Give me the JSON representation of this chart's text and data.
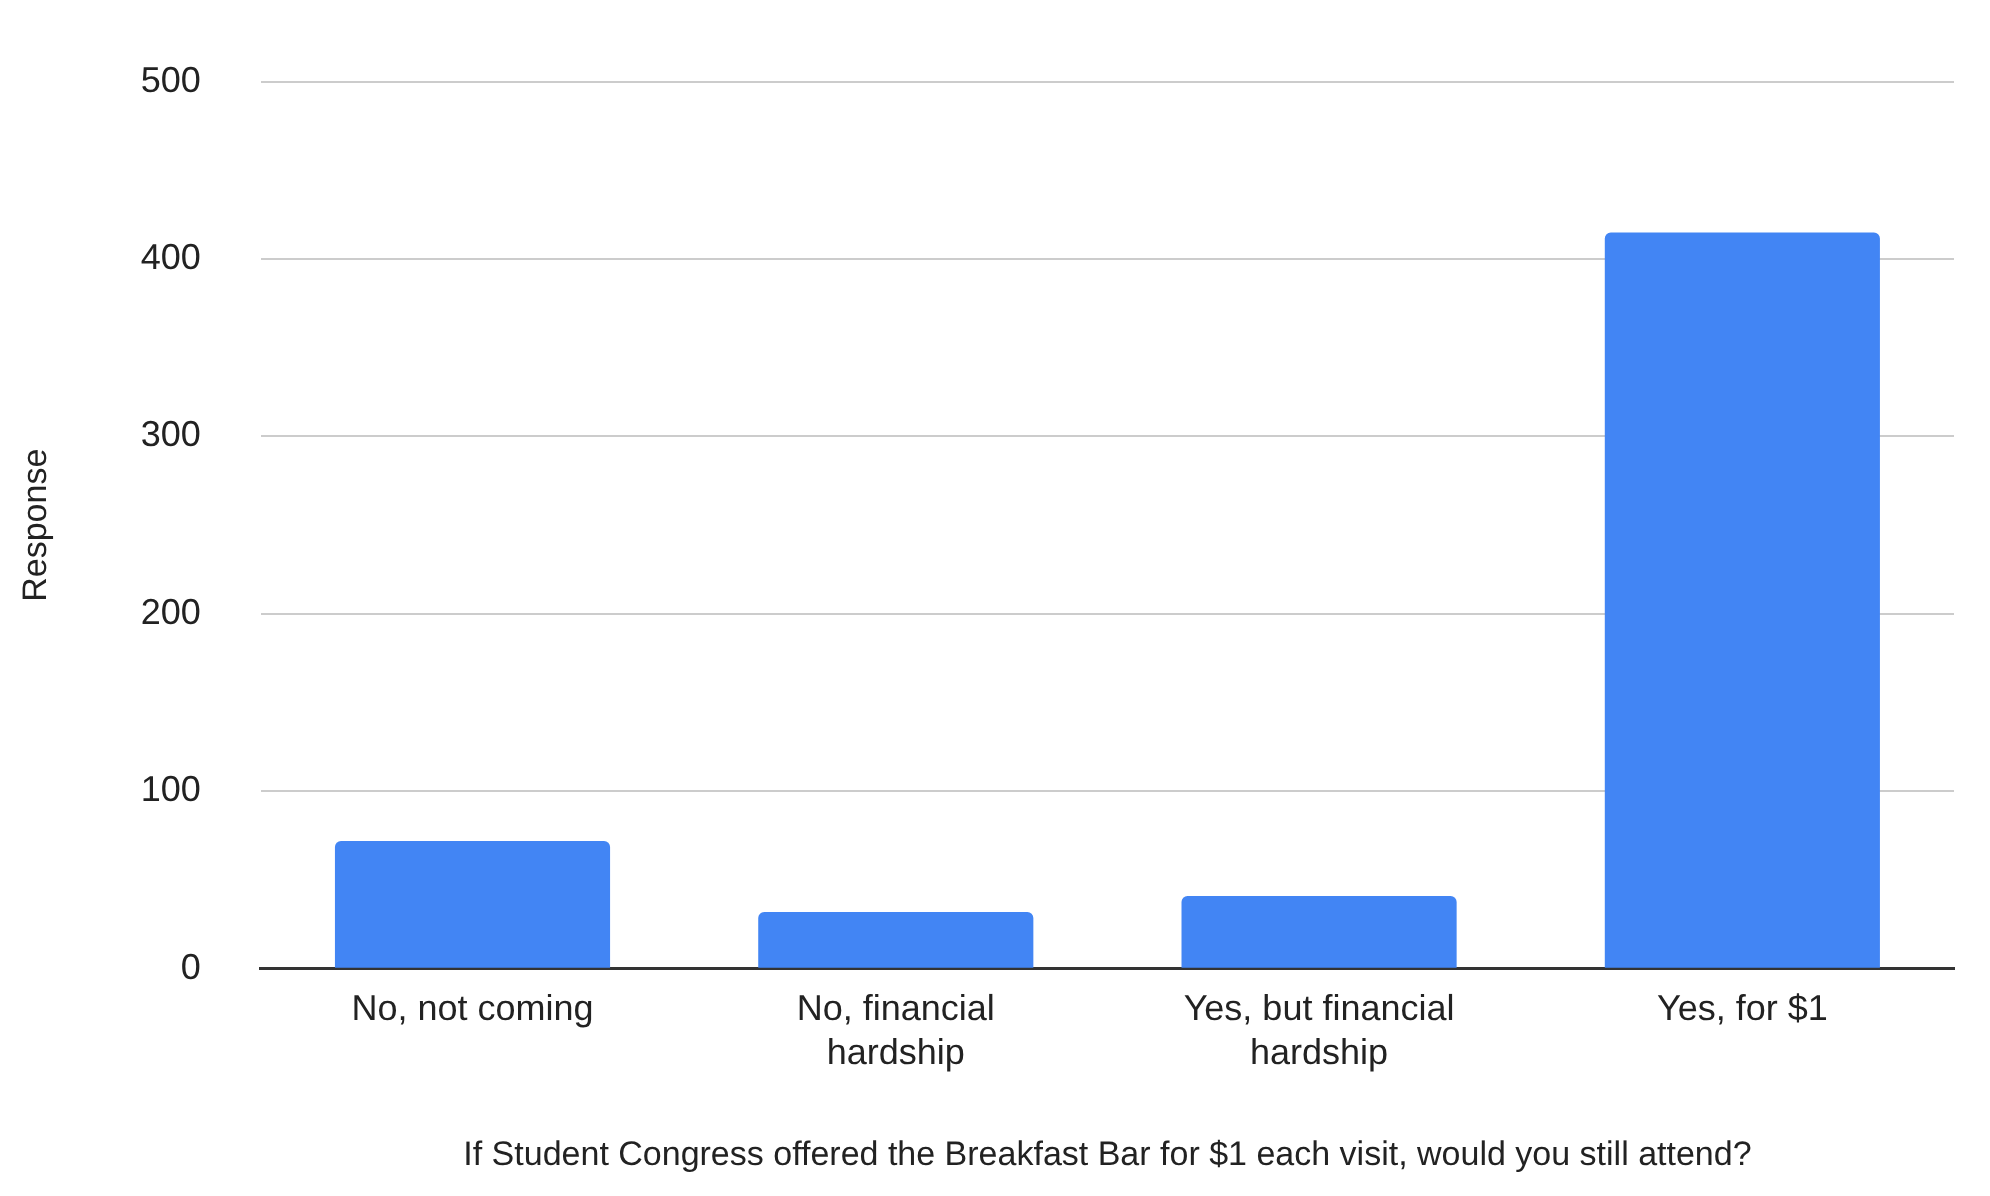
{
  "chart_data": {
    "type": "bar",
    "xlabel": "If Student Congress offered the Breakfast Bar for $1 each visit, would you still attend?",
    "ylabel": "Response",
    "categories": [
      "No, not coming",
      "No, financial hardship",
      "Yes, but financial hardship",
      "Yes, for $1"
    ],
    "values": [
      72,
      32,
      41,
      415
    ],
    "color": "#4285f4",
    "ylim": [
      0,
      500
    ],
    "yticks": [
      0,
      100,
      200,
      300,
      400,
      500
    ],
    "grid": "y",
    "legend": false
  }
}
